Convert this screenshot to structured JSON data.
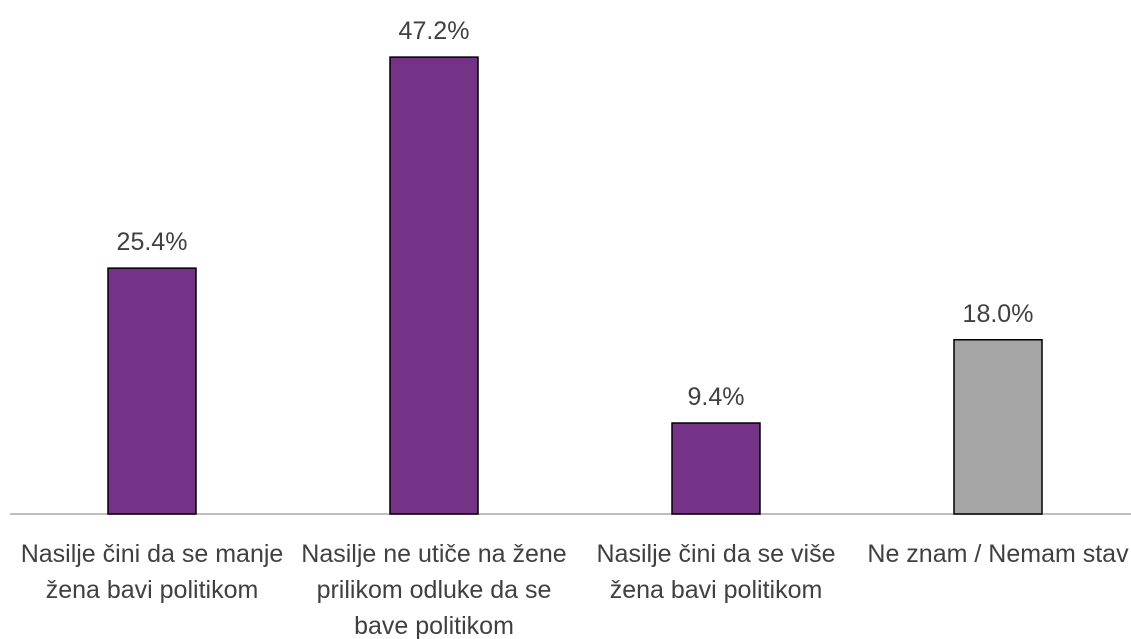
{
  "chart_data": {
    "type": "bar",
    "categories": [
      "Nasilje čini da se manje žena bavi politikom",
      "Nasilje ne utiče na žene prilikom odluke da se bave politikom",
      "Nasilje čini da se više žena bavi politikom",
      "Ne znam / Nemam stav"
    ],
    "values": [
      25.4,
      47.2,
      9.4,
      18.0
    ],
    "value_labels": [
      "25.4%",
      "47.2%",
      "9.4%",
      "18.0%"
    ],
    "colors": [
      "#753387",
      "#753387",
      "#753387",
      "#a5a5a5"
    ]
  }
}
